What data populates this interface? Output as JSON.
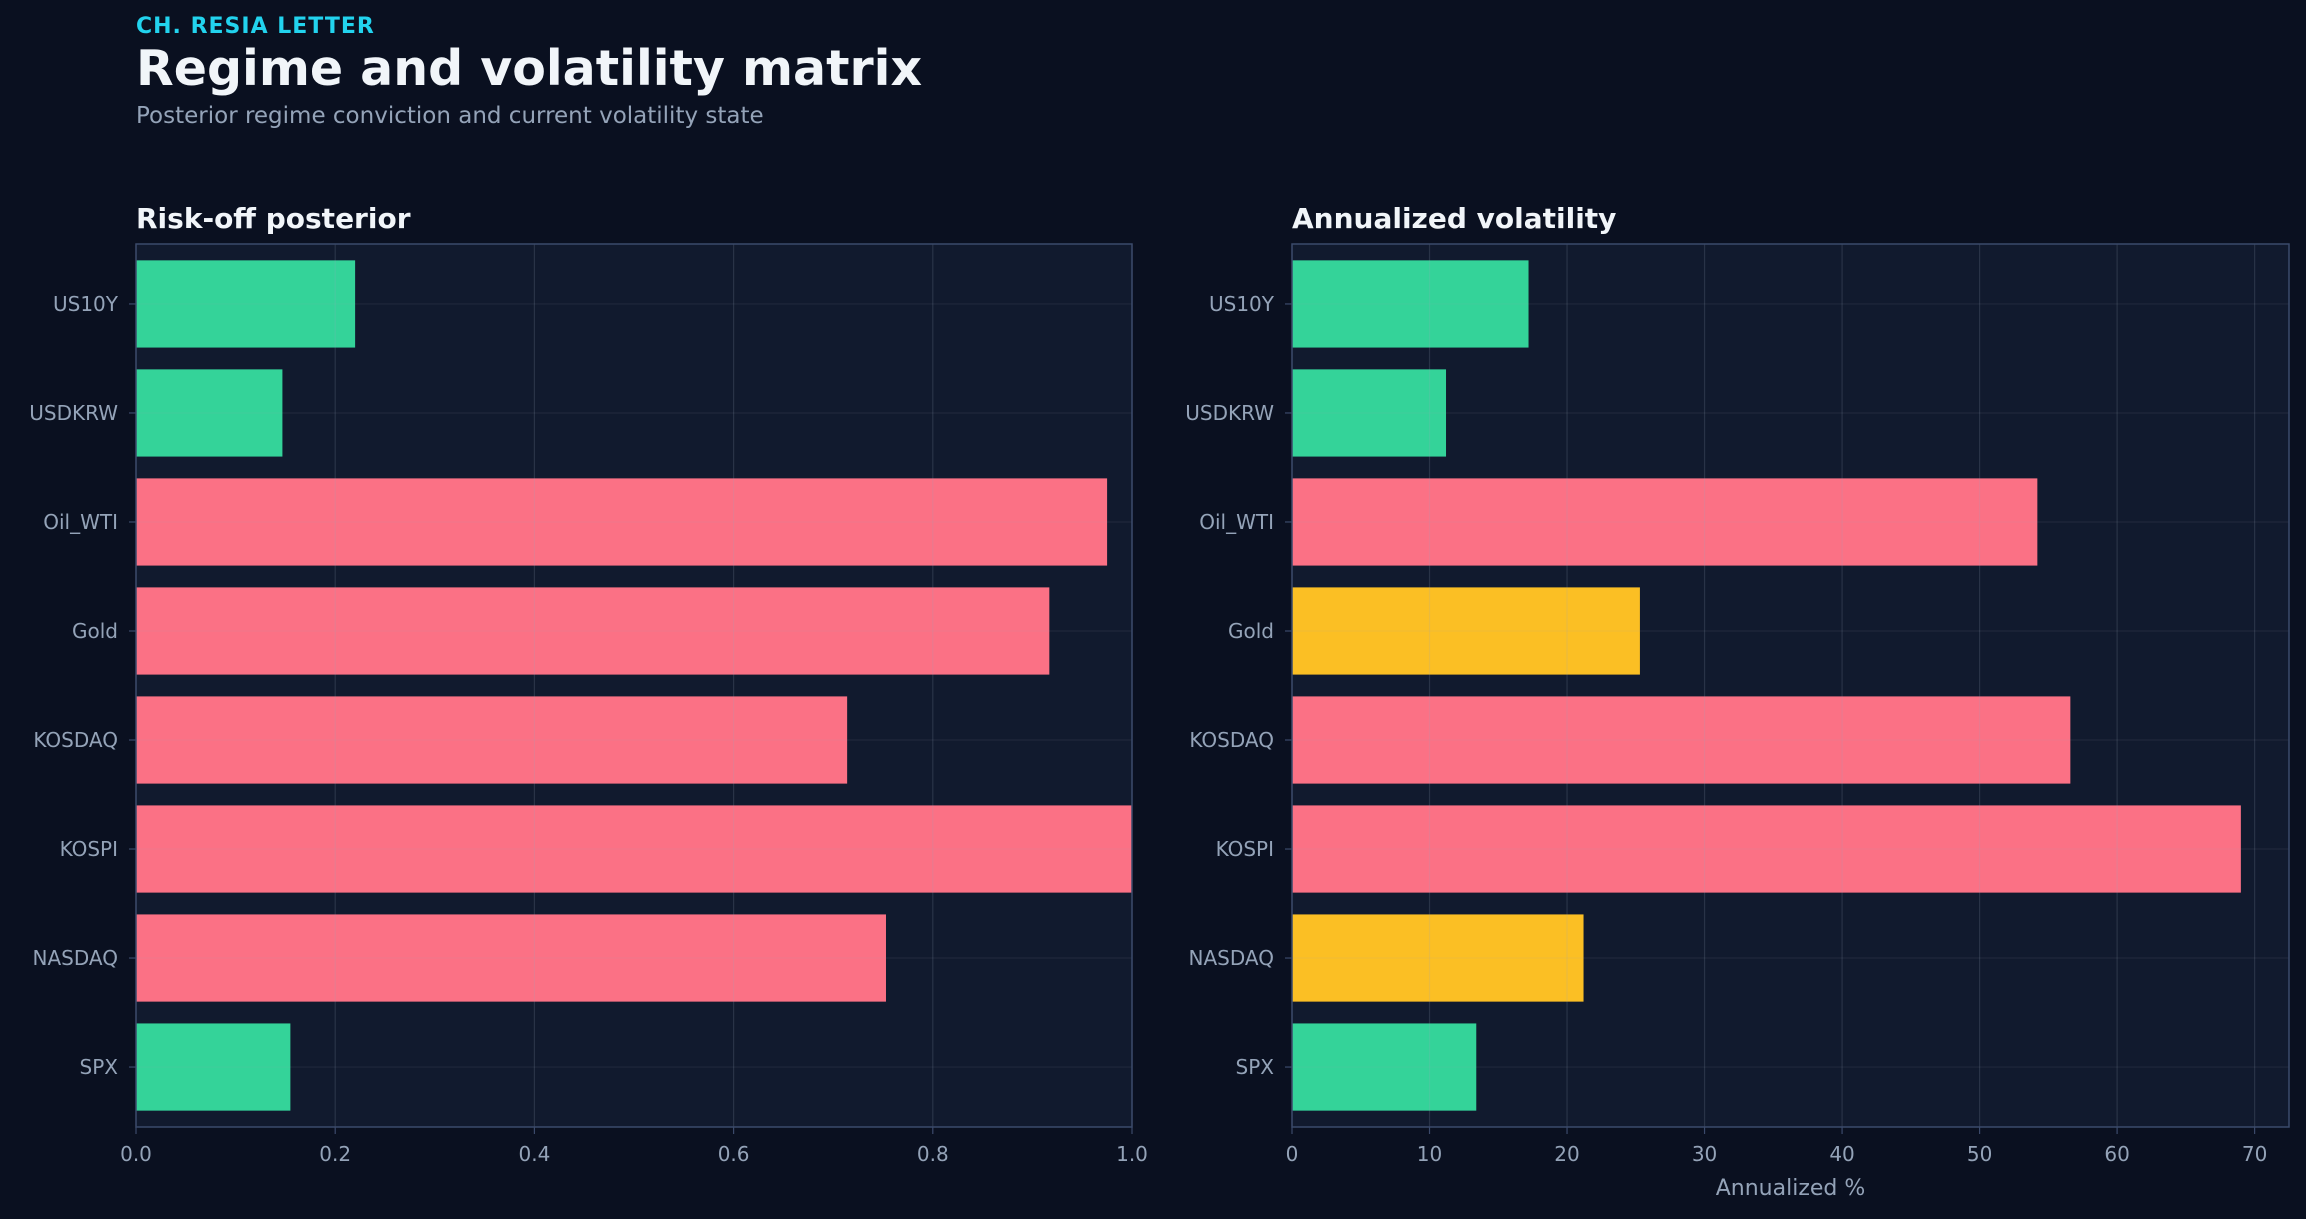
{
  "header": {
    "kicker": "CH. RESIA LETTER",
    "title": "Regime and volatility matrix",
    "subtitle": "Posterior regime conviction and current volatility state"
  },
  "colors": {
    "background": "#0a1020",
    "panel": "#111a2e",
    "green": "#34d399",
    "red": "#fb7185",
    "yellow": "#fbbf24",
    "grid": "#233047",
    "frame": "#3b4a6b",
    "text": "#94a3b8"
  },
  "chart_data": [
    {
      "type": "bar",
      "orientation": "horizontal",
      "title": "Risk-off posterior",
      "xlabel": "",
      "ylabel": "",
      "categories": [
        "US10Y",
        "USDKRW",
        "Oil_WTI",
        "Gold",
        "KOSDAQ",
        "KOSPI",
        "NASDAQ",
        "SPX"
      ],
      "values": [
        0.22,
        0.147,
        0.975,
        0.917,
        0.714,
        1.0,
        0.753,
        0.155
      ],
      "bar_colors": [
        "green",
        "green",
        "red",
        "red",
        "red",
        "red",
        "red",
        "green"
      ],
      "xlim": [
        0,
        1.0
      ],
      "xticks": [
        0.0,
        0.2,
        0.4,
        0.6,
        0.8,
        1.0
      ],
      "xtick_labels": [
        "0.0",
        "0.2",
        "0.4",
        "0.6",
        "0.8",
        "1.0"
      ],
      "grid": true
    },
    {
      "type": "bar",
      "orientation": "horizontal",
      "title": "Annualized volatility",
      "xlabel": "Annualized %",
      "ylabel": "",
      "categories": [
        "US10Y",
        "USDKRW",
        "Oil_WTI",
        "Gold",
        "KOSDAQ",
        "KOSPI",
        "NASDAQ",
        "SPX"
      ],
      "values": [
        17.2,
        11.2,
        54.2,
        25.3,
        56.6,
        69.0,
        21.2,
        13.4
      ],
      "bar_colors": [
        "green",
        "green",
        "red",
        "yellow",
        "red",
        "red",
        "yellow",
        "green"
      ],
      "xlim": [
        0,
        72.5
      ],
      "xticks": [
        0,
        10,
        20,
        30,
        40,
        50,
        60,
        70
      ],
      "xtick_labels": [
        "0",
        "10",
        "20",
        "30",
        "40",
        "50",
        "60",
        "70"
      ],
      "grid": true
    }
  ]
}
